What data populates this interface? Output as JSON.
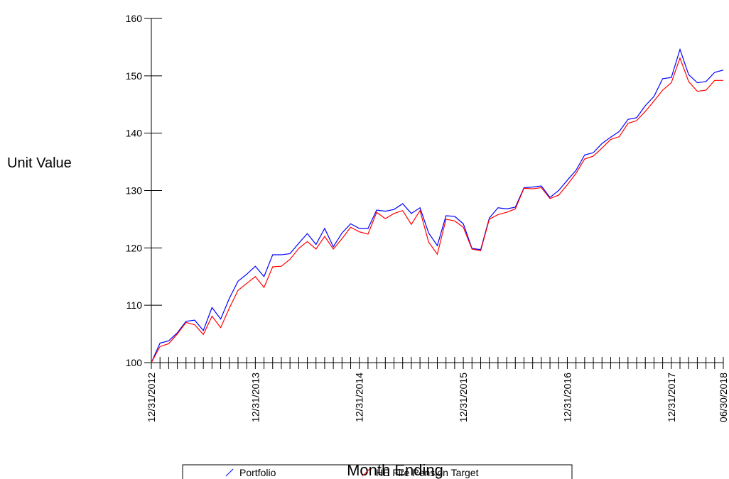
{
  "chart_data": {
    "type": "line",
    "y_label": "Unit Value",
    "x_label": "Month Ending",
    "categories": [
      "12/31/2012",
      null,
      null,
      null,
      null,
      null,
      null,
      null,
      null,
      null,
      null,
      null,
      "12/31/2013",
      null,
      null,
      null,
      null,
      null,
      null,
      null,
      null,
      null,
      null,
      null,
      "12/31/2014",
      null,
      null,
      null,
      null,
      null,
      null,
      null,
      null,
      null,
      null,
      null,
      "12/31/2015",
      null,
      null,
      null,
      null,
      null,
      null,
      null,
      null,
      null,
      null,
      null,
      "12/31/2016",
      null,
      null,
      null,
      null,
      null,
      null,
      null,
      null,
      null,
      null,
      null,
      "12/31/2017",
      null,
      null,
      null,
      null,
      null,
      "06/30/2018"
    ],
    "series": [
      {
        "name": "Portfolio",
        "color": "#0000ff",
        "values": [
          100,
          103.4,
          103.8,
          105.2,
          107.2,
          107.4,
          105.6,
          109.6,
          107.6,
          111.2,
          114.2,
          115.4,
          116.8,
          115.0,
          118.8,
          118.8,
          119.0,
          120.8,
          122.5,
          120.6,
          123.4,
          120.2,
          122.6,
          124.2,
          123.4,
          123.4,
          126.6,
          126.4,
          126.7,
          127.7,
          126.0,
          127.0,
          122.6,
          120.4,
          125.6,
          125.5,
          124.2,
          119.9,
          119.7,
          125.2,
          127.0,
          126.8,
          127.1,
          130.5,
          130.6,
          130.8,
          128.8,
          130.0,
          131.8,
          133.5,
          136.2,
          136.6,
          138.2,
          139.3,
          140.3,
          142.4,
          142.7,
          144.8,
          146.4,
          149.5,
          149.7,
          154.6,
          150.2,
          148.8,
          149.0,
          150.6,
          151.0
        ]
      },
      {
        "name": "HE Fire Pension Target",
        "color": "#ff0000",
        "values": [
          100,
          102.8,
          103.3,
          105.0,
          107.0,
          106.6,
          104.9,
          108.1,
          106.1,
          109.5,
          112.6,
          113.8,
          115.0,
          113.1,
          116.7,
          116.8,
          118.0,
          119.9,
          121.1,
          119.8,
          122.0,
          119.8,
          121.6,
          123.6,
          122.8,
          122.4,
          126.2,
          125.1,
          126.0,
          126.5,
          124.1,
          126.5,
          121.0,
          118.9,
          125.0,
          124.7,
          123.6,
          119.8,
          119.5,
          125.0,
          125.8,
          126.2,
          126.8,
          130.4,
          130.3,
          130.5,
          128.6,
          129.2,
          131.0,
          133.0,
          135.5,
          136.0,
          137.4,
          138.9,
          139.4,
          141.7,
          142.2,
          143.8,
          145.6,
          147.5,
          148.8,
          153.1,
          149.0,
          147.3,
          147.5,
          149.2,
          149.2
        ]
      }
    ],
    "ylim": [
      100,
      160
    ],
    "yticks": [
      100,
      110,
      120,
      130,
      140,
      150,
      160
    ],
    "legend": "bottom"
  }
}
